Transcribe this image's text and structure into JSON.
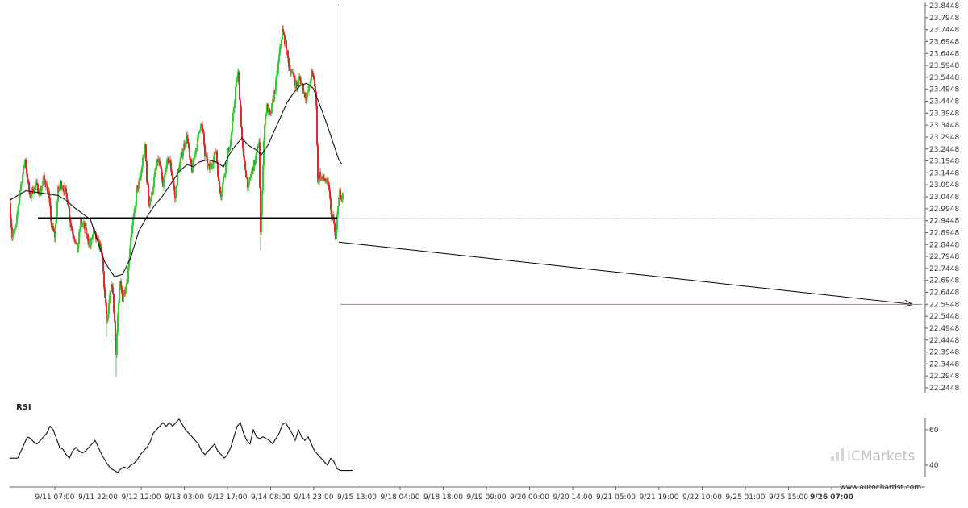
{
  "chart_data": [
    {
      "type": "candlestick",
      "title": "",
      "y_ticks": [
        "23.8448",
        "23.7948",
        "23.7448",
        "23.6948",
        "23.6448",
        "23.5948",
        "23.5448",
        "23.4948",
        "23.4448",
        "23.3948",
        "23.3448",
        "23.2948",
        "23.2448",
        "23.1948",
        "23.1448",
        "23.0948",
        "23.0448",
        "22.9948",
        "22.9448",
        "22.8948",
        "22.8448",
        "22.7948",
        "22.7448",
        "22.6948",
        "22.6448",
        "22.5948",
        "22.5448",
        "22.4948",
        "22.4448",
        "22.3948",
        "22.3448",
        "22.2948",
        "22.2448"
      ],
      "ylim": [
        22.2448,
        23.8448
      ],
      "x_ticks": [
        "9/11 07:00",
        "9/11 22:00",
        "9/12 12:00",
        "9/13 03:00",
        "9/13 17:00",
        "9/14 08:00",
        "9/14 23:00",
        "9/15 13:00",
        "9/18 04:00",
        "9/18 18:00",
        "9/19 09:00",
        "9/20 00:00",
        "9/20 14:00",
        "9/21 05:00",
        "9/21 19:00",
        "9/22 10:00",
        "9/25 01:00",
        "9/25 15:00",
        "9/26 07:00"
      ],
      "price_path": [
        [
          0,
          23.02
        ],
        [
          3,
          22.88
        ],
        [
          8,
          22.92
        ],
        [
          12,
          23.05
        ],
        [
          16,
          23.14
        ],
        [
          19,
          23.2
        ],
        [
          22,
          23.12
        ],
        [
          25,
          23.04
        ],
        [
          28,
          23.07
        ],
        [
          33,
          23.09
        ],
        [
          38,
          23.06
        ],
        [
          42,
          23.12
        ],
        [
          45,
          23.1
        ],
        [
          48,
          23.06
        ],
        [
          52,
          22.92
        ],
        [
          56,
          22.88
        ],
        [
          60,
          23.07
        ],
        [
          63,
          23.1
        ],
        [
          67,
          23.08
        ],
        [
          71,
          23.05
        ],
        [
          76,
          22.92
        ],
        [
          80,
          22.88
        ],
        [
          84,
          22.82
        ],
        [
          88,
          22.94
        ],
        [
          92,
          22.92
        ],
        [
          96,
          22.88
        ],
        [
          100,
          22.84
        ],
        [
          104,
          22.9
        ],
        [
          108,
          22.86
        ],
        [
          112,
          22.84
        ],
        [
          115,
          22.78
        ],
        [
          118,
          22.62
        ],
        [
          121,
          22.52
        ],
        [
          124,
          22.62
        ],
        [
          127,
          22.68
        ],
        [
          130,
          22.52
        ],
        [
          132,
          22.4
        ],
        [
          134,
          22.55
        ],
        [
          137,
          22.68
        ],
        [
          140,
          22.62
        ],
        [
          143,
          22.66
        ],
        [
          146,
          22.7
        ],
        [
          150,
          22.88
        ],
        [
          154,
          22.96
        ],
        [
          158,
          23.08
        ],
        [
          162,
          23.12
        ],
        [
          165,
          23.2
        ],
        [
          168,
          23.26
        ],
        [
          170,
          23.12
        ],
        [
          173,
          23.02
        ],
        [
          176,
          23.05
        ],
        [
          180,
          23.14
        ],
        [
          184,
          23.2
        ],
        [
          187,
          23.16
        ],
        [
          190,
          23.08
        ],
        [
          194,
          23.18
        ],
        [
          198,
          23.2
        ],
        [
          202,
          23.12
        ],
        [
          205,
          23.04
        ],
        [
          208,
          23.14
        ],
        [
          212,
          23.2
        ],
        [
          216,
          23.26
        ],
        [
          220,
          23.3
        ],
        [
          223,
          23.2
        ],
        [
          226,
          23.16
        ],
        [
          229,
          23.22
        ],
        [
          233,
          23.28
        ],
        [
          237,
          23.36
        ],
        [
          240,
          23.3
        ],
        [
          242,
          23.22
        ],
        [
          245,
          23.18
        ],
        [
          248,
          23.16
        ],
        [
          252,
          23.2
        ],
        [
          256,
          23.24
        ],
        [
          259,
          23.1
        ],
        [
          262,
          23.06
        ],
        [
          266,
          23.14
        ],
        [
          270,
          23.22
        ],
        [
          274,
          23.28
        ],
        [
          277,
          23.38
        ],
        [
          280,
          23.5
        ],
        [
          283,
          23.56
        ],
        [
          286,
          23.42
        ],
        [
          288,
          23.28
        ],
        [
          290,
          23.2
        ],
        [
          293,
          23.14
        ],
        [
          296,
          23.08
        ],
        [
          299,
          23.14
        ],
        [
          303,
          23.18
        ],
        [
          306,
          23.22
        ],
        [
          309,
          23.28
        ],
        [
          311,
          22.88
        ],
        [
          313,
          23.08
        ],
        [
          316,
          23.36
        ],
        [
          319,
          23.42
        ],
        [
          323,
          23.38
        ],
        [
          327,
          23.46
        ],
        [
          331,
          23.54
        ],
        [
          335,
          23.66
        ],
        [
          338,
          23.74
        ],
        [
          341,
          23.7
        ],
        [
          344,
          23.64
        ],
        [
          347,
          23.58
        ],
        [
          350,
          23.56
        ],
        [
          353,
          23.54
        ],
        [
          356,
          23.5
        ],
        [
          359,
          23.54
        ],
        [
          362,
          23.52
        ],
        [
          365,
          23.48
        ],
        [
          368,
          23.46
        ],
        [
          371,
          23.5
        ],
        [
          374,
          23.56
        ],
        [
          377,
          23.54
        ],
        [
          380,
          23.44
        ],
        [
          382,
          23.1
        ],
        [
          384,
          23.14
        ],
        [
          387,
          23.12
        ],
        [
          390,
          23.12
        ],
        [
          393,
          23.1
        ],
        [
          396,
          23.08
        ],
        [
          398,
          22.98
        ],
        [
          400,
          22.96
        ],
        [
          402,
          22.93
        ],
        [
          404,
          22.86
        ],
        [
          405,
          22.9
        ],
        [
          407,
          23.02
        ],
        [
          409,
          23.06
        ],
        [
          411,
          23.03
        ],
        [
          413,
          23.05
        ]
      ],
      "spikes": [
        [
          84,
          22.83
        ],
        [
          120,
          22.46
        ],
        [
          132,
          22.29
        ],
        [
          311,
          22.82
        ],
        [
          382,
          23.12
        ]
      ],
      "moving_average": [
        [
          0,
          23.03
        ],
        [
          20,
          23.07
        ],
        [
          40,
          23.06
        ],
        [
          60,
          23.05
        ],
        [
          70,
          23.03
        ],
        [
          80,
          23.0
        ],
        [
          100,
          22.95
        ],
        [
          108,
          22.87
        ],
        [
          118,
          22.77
        ],
        [
          130,
          22.71
        ],
        [
          140,
          22.72
        ],
        [
          150,
          22.79
        ],
        [
          160,
          22.9
        ],
        [
          170,
          22.96
        ],
        [
          180,
          23.01
        ],
        [
          190,
          23.05
        ],
        [
          200,
          23.1
        ],
        [
          210,
          23.15
        ],
        [
          220,
          23.18
        ],
        [
          228,
          23.17
        ],
        [
          235,
          23.19
        ],
        [
          245,
          23.2
        ],
        [
          256,
          23.19
        ],
        [
          265,
          23.17
        ],
        [
          272,
          23.22
        ],
        [
          280,
          23.26
        ],
        [
          288,
          23.29
        ],
        [
          296,
          23.26
        ],
        [
          306,
          23.24
        ],
        [
          312,
          23.22
        ],
        [
          320,
          23.26
        ],
        [
          328,
          23.32
        ],
        [
          336,
          23.38
        ],
        [
          344,
          23.44
        ],
        [
          352,
          23.48
        ],
        [
          360,
          23.51
        ],
        [
          368,
          23.52
        ],
        [
          376,
          23.5
        ],
        [
          382,
          23.45
        ],
        [
          390,
          23.38
        ],
        [
          400,
          23.28
        ],
        [
          408,
          23.2
        ],
        [
          412,
          23.18
        ]
      ],
      "support_level": 22.955,
      "support_start_index": 35,
      "last_index": 413,
      "forecast_target": 22.5948,
      "forecast_start_index": 404,
      "forecast_end_index": 450,
      "bullish_color": "#33cc33",
      "bearish_color": "#e02b2b",
      "moving_average_color": "#111111",
      "target_line_color": "#ff6a00",
      "bar_count": 410,
      "grid": false,
      "axis_side": "right"
    },
    {
      "type": "line",
      "title": "RSI",
      "y_ticks": [
        "60",
        "40"
      ],
      "ylim": [
        35,
        70
      ],
      "values": [
        [
          0,
          44
        ],
        [
          10,
          44
        ],
        [
          14,
          48
        ],
        [
          18,
          52
        ],
        [
          22,
          56
        ],
        [
          26,
          55
        ],
        [
          30,
          53
        ],
        [
          34,
          52
        ],
        [
          38,
          54
        ],
        [
          42,
          56
        ],
        [
          46,
          58
        ],
        [
          50,
          62
        ],
        [
          54,
          60
        ],
        [
          58,
          55
        ],
        [
          62,
          50
        ],
        [
          66,
          49
        ],
        [
          70,
          46
        ],
        [
          74,
          44
        ],
        [
          78,
          48
        ],
        [
          82,
          50
        ],
        [
          86,
          48
        ],
        [
          90,
          47
        ],
        [
          94,
          48
        ],
        [
          98,
          50
        ],
        [
          102,
          52
        ],
        [
          106,
          54
        ],
        [
          110,
          50
        ],
        [
          114,
          46
        ],
        [
          118,
          43
        ],
        [
          122,
          40
        ],
        [
          126,
          38
        ],
        [
          130,
          37
        ],
        [
          134,
          36
        ],
        [
          138,
          38
        ],
        [
          142,
          39
        ],
        [
          146,
          38
        ],
        [
          150,
          40
        ],
        [
          154,
          41
        ],
        [
          158,
          43
        ],
        [
          162,
          46
        ],
        [
          166,
          48
        ],
        [
          170,
          50
        ],
        [
          174,
          53
        ],
        [
          178,
          58
        ],
        [
          182,
          60
        ],
        [
          186,
          62
        ],
        [
          190,
          64
        ],
        [
          194,
          62
        ],
        [
          198,
          64
        ],
        [
          202,
          62
        ],
        [
          206,
          64
        ],
        [
          210,
          66
        ],
        [
          214,
          63
        ],
        [
          218,
          60
        ],
        [
          222,
          58
        ],
        [
          226,
          56
        ],
        [
          230,
          54
        ],
        [
          234,
          52
        ],
        [
          238,
          48
        ],
        [
          242,
          46
        ],
        [
          246,
          48
        ],
        [
          250,
          50
        ],
        [
          254,
          52
        ],
        [
          258,
          48
        ],
        [
          262,
          46
        ],
        [
          266,
          44
        ],
        [
          270,
          46
        ],
        [
          274,
          50
        ],
        [
          278,
          56
        ],
        [
          282,
          62
        ],
        [
          286,
          64
        ],
        [
          290,
          58
        ],
        [
          294,
          54
        ],
        [
          298,
          52
        ],
        [
          302,
          60
        ],
        [
          306,
          56
        ],
        [
          310,
          55
        ],
        [
          314,
          56
        ],
        [
          318,
          55
        ],
        [
          322,
          54
        ],
        [
          326,
          52
        ],
        [
          330,
          55
        ],
        [
          334,
          58
        ],
        [
          338,
          63
        ],
        [
          342,
          64
        ],
        [
          346,
          61
        ],
        [
          350,
          58
        ],
        [
          354,
          54
        ],
        [
          358,
          60
        ],
        [
          362,
          56
        ],
        [
          366,
          54
        ],
        [
          370,
          56
        ],
        [
          374,
          52
        ],
        [
          378,
          48
        ],
        [
          382,
          46
        ],
        [
          386,
          44
        ],
        [
          390,
          42
        ],
        [
          394,
          40
        ],
        [
          398,
          44
        ],
        [
          402,
          42
        ],
        [
          406,
          38
        ],
        [
          410,
          37
        ],
        [
          413,
          37
        ]
      ],
      "color": "#111111",
      "last_index": 413
    }
  ],
  "watermark": {
    "brand": "ICMarkets",
    "prefix": "IC",
    "suffix": "Markets",
    "prefix_color": "#cfcfcf",
    "suffix_color": "#bdbdbd"
  },
  "footer": {
    "website": "www.autochartist.com"
  }
}
